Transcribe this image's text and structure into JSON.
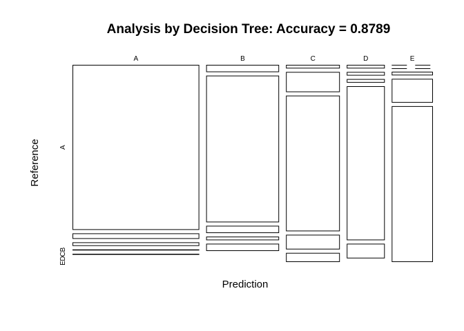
{
  "chart_data": {
    "type": "mosaic",
    "title": "Analysis by Decision Tree: Accuracy = 0.8789",
    "xlabel": "Prediction",
    "ylabel": "Reference",
    "prediction_levels": [
      "A",
      "B",
      "C",
      "D",
      "E"
    ],
    "reference_levels": [
      "A",
      "B",
      "C",
      "D",
      "E"
    ],
    "y_tick_labels": [
      "A",
      "B",
      "C",
      "D",
      "E"
    ],
    "column_shares": [
      0.4,
      0.23,
      0.17,
      0.12,
      0.13
    ],
    "cell_shares_within_prediction": {
      "A": [
        0.9,
        0.03,
        0.02,
        0.005,
        0.005
      ],
      "B": [
        0.04,
        0.8,
        0.04,
        0.02,
        0.04
      ],
      "C": [
        0.02,
        0.11,
        0.74,
        0.08,
        0.05
      ],
      "D": [
        0.02,
        0.02,
        0.02,
        0.84,
        0.08
      ],
      "E": [
        0.0,
        0.0,
        0.02,
        0.13,
        0.85
      ]
    }
  }
}
